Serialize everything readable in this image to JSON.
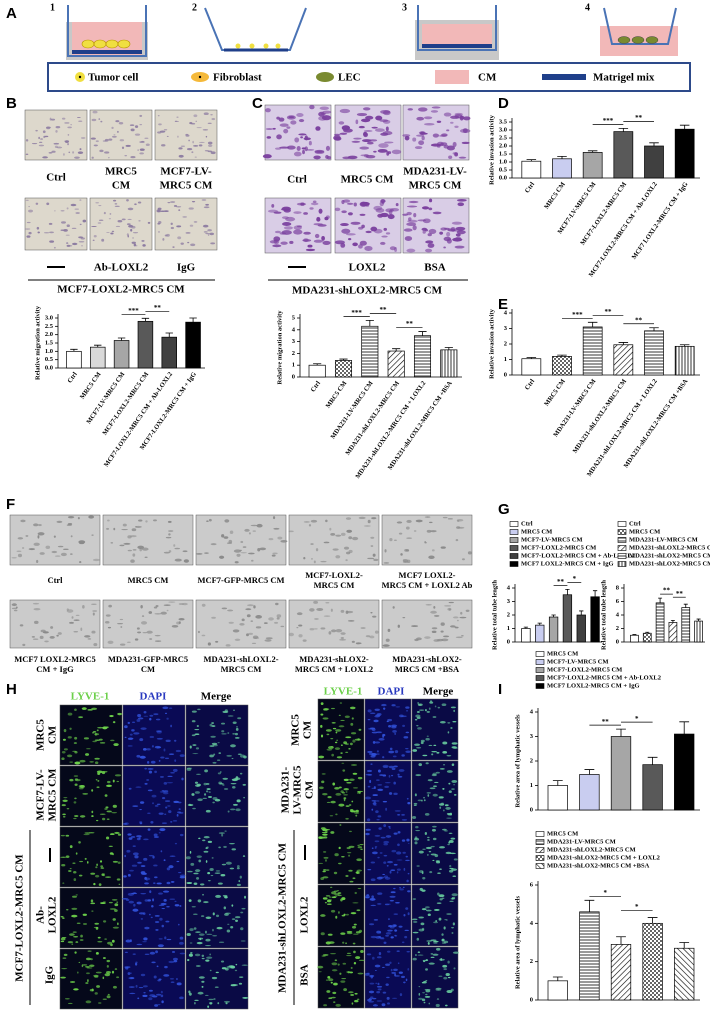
{
  "panel_labels": [
    "A",
    "B",
    "C",
    "D",
    "E",
    "F",
    "G",
    "H",
    "I"
  ],
  "schematic": {
    "steps": [
      "1",
      "2",
      "3",
      "4"
    ],
    "legend": [
      "Tumor cell",
      "Fibroblast",
      "LEC",
      "CM",
      "Matrigel mix"
    ]
  },
  "panel_b": {
    "captions": [
      [
        "Ctrl"
      ],
      [
        "MRC5",
        "CM"
      ],
      [
        "MCF7-LV-",
        "MRC5 CM"
      ]
    ],
    "treatments": [
      "Ab-LOXL2",
      "IgG"
    ],
    "group": "MCF7-LOXL2-MRC5 CM"
  },
  "panel_c": {
    "captions": [
      [
        "Ctrl"
      ],
      [
        "MRC5 CM"
      ],
      [
        "MDA231-LV-",
        "MRC5 CM"
      ]
    ],
    "treatments": [
      "LOXL2",
      "BSA"
    ],
    "group": "MDA231-shLOXL2-MRC5 CM"
  },
  "panel_f": {
    "captions": [
      [
        "Ctrl"
      ],
      [
        "MRC5 CM"
      ],
      [
        "MCF7-GFP-MRC5 CM"
      ],
      [
        "MCF7-LOXL2-",
        "MRC5 CM"
      ],
      [
        "MCF7 LOXL2-",
        "MRC5 CM + LOXL2 Ab"
      ],
      [
        "MCF7 LOXL2-MRC5",
        "CM + IgG"
      ],
      [
        "MDA231-GFP-MRC5",
        "CM"
      ],
      [
        "MDA231-shLOXL2-",
        "MRC5 CM"
      ],
      [
        "MDA231-shLOX2-",
        "MRC5 CM + LOXL2"
      ],
      [
        "MDA231-shLOX2-",
        "MRC5 CM +BSA"
      ]
    ]
  },
  "panel_h": {
    "left": {
      "headers": [
        "LYVE-1",
        "DAPI",
        "Merge"
      ],
      "rows": [
        [
          "MRC5",
          "CM"
        ],
        [
          "MCF7-LV-",
          "MRC5 CM"
        ],
        [
          "Ab-",
          "LOXL2"
        ],
        [
          "IgG"
        ]
      ],
      "group": "MCF7-LOXL2-MRC5 CM"
    },
    "right": {
      "headers": [
        "LYVE-1",
        "DAPI",
        "Merge"
      ],
      "rows": [
        [
          "MRC5",
          "CM"
        ],
        [
          "MDA231-",
          "LV-MRC5",
          "CM"
        ],
        [
          "LOXL2"
        ],
        [
          "BSA"
        ]
      ],
      "group": "MDA231-shLOXL2-MRC5 CM"
    }
  },
  "chart_data": [
    {
      "type": "bar",
      "ylabel": "Relative migration activity",
      "category_labels": "axis",
      "categories": [
        "Ctrl",
        "MRC5 CM",
        "MCF7-LV-MRC5 CM",
        "MCF7-LOXL2-MRC5 CM",
        "MCF7-LOXL2-MRC5 CM + Ab-LOXL2",
        "MCF7-LOXL2-MRC5 CM + IgG"
      ],
      "values": [
        1.0,
        1.25,
        1.65,
        2.8,
        1.85,
        2.75
      ],
      "errors": [
        0.12,
        0.12,
        0.15,
        0.18,
        0.25,
        0.25
      ],
      "colors": [
        "#ffffff",
        "#d9d9d9",
        "#a6a6a6",
        "#595959",
        "#404040",
        "#000000"
      ],
      "ylim": [
        0,
        3
      ],
      "yticks": [
        {
          "value": 0,
          "label": "0.0"
        },
        {
          "value": 0.5,
          "label": "0.5"
        },
        {
          "value": 1,
          "label": "1.0"
        },
        {
          "value": 1.5,
          "label": "1.5"
        },
        {
          "value": 2,
          "label": "2.0"
        },
        {
          "value": 2.5,
          "label": "2.5"
        },
        {
          "value": 3,
          "label": "3.0"
        }
      ],
      "annotations": [
        {
          "text": "***",
          "between": [
            "MCF7-LV-MRC5 CM",
            "MCF7-LOXL2-MRC5 CM"
          ]
        },
        {
          "text": "**",
          "between": [
            "MCF7-LOXL2-MRC5 CM",
            "MCF7-LOXL2-MRC5 CM + Ab-LOXL2"
          ]
        }
      ]
    },
    {
      "type": "bar",
      "ylabel": "Relative migration activity",
      "category_labels": "axis",
      "categories": [
        "Ctrl",
        "MRC5 CM",
        "MDA231-LV-MRC5 CM",
        "MDA231-shLOXL2-MRC5 CM",
        "MDA231-shLOXL2-MRC5 CM + LOXL2",
        "MDA231-shLOXL2-MRC5 CM +BSA"
      ],
      "values": [
        1.0,
        1.4,
        4.3,
        2.2,
        3.5,
        2.3
      ],
      "errors": [
        0.12,
        0.12,
        0.5,
        0.2,
        0.35,
        0.2
      ],
      "colors": [
        "#ffffff",
        "#ffffff",
        "#ffffff",
        "#ffffff",
        "#ffffff",
        "#ffffff"
      ],
      "patterns": [
        "solid",
        "check",
        "hline",
        "diag",
        "hline",
        "vline"
      ],
      "ylim": [
        0,
        5
      ],
      "yticks": [
        0,
        1,
        2,
        3,
        4,
        5
      ],
      "annotations": [
        {
          "text": "***",
          "between": [
            "MRC5 CM",
            "MDA231-LV-MRC5 CM"
          ]
        },
        {
          "text": "**",
          "between": [
            "MDA231-LV-MRC5 CM",
            "MDA231-shLOXL2-MRC5 CM"
          ]
        },
        {
          "text": "**",
          "between": [
            "MDA231-shLOXL2-MRC5 CM",
            "MDA231-shLOXL2-MRC5 CM + LOXL2"
          ]
        }
      ]
    },
    {
      "type": "bar",
      "ylabel": "Relative invasion activity",
      "category_labels": "axis",
      "categories": [
        "Ctrl",
        "MRC5 CM",
        "MCF7-LV-MRC5 CM",
        "MCF7-LOXL2-MRC5 CM",
        "MCF7-LOXL2-MRC5 CM + Ab-LOXL2",
        "MCF7 LOXL2-MRC5 CM + IgG"
      ],
      "values": [
        1.05,
        1.2,
        1.6,
        2.9,
        2.0,
        3.05
      ],
      "errors": [
        0.1,
        0.15,
        0.1,
        0.2,
        0.2,
        0.25
      ],
      "colors": [
        "#ffffff",
        "#c9cdf0",
        "#a6a6a6",
        "#595959",
        "#404040",
        "#000000"
      ],
      "ylim": [
        0,
        3.5
      ],
      "yticks": [
        {
          "value": 0,
          "label": "0.0"
        },
        {
          "value": 0.5,
          "label": "0.5"
        },
        {
          "value": 1,
          "label": "1.0"
        },
        {
          "value": 1.5,
          "label": "1.5"
        },
        {
          "value": 2,
          "label": "2.0"
        },
        {
          "value": 2.5,
          "label": "2.5"
        },
        {
          "value": 3,
          "label": "3.0"
        },
        {
          "value": 3.5,
          "label": "3.5"
        }
      ],
      "annotations": [
        {
          "text": "***",
          "between": [
            "MCF7-LV-MRC5 CM",
            "MCF7-LOXL2-MRC5 CM"
          ]
        },
        {
          "text": "**",
          "between": [
            "MCF7-LOXL2-MRC5 CM",
            "MCF7-LOXL2-MRC5 CM + Ab-LOXL2"
          ]
        }
      ]
    },
    {
      "type": "bar",
      "ylabel": "Relative invasion activity",
      "category_labels": "axis",
      "categories": [
        "Ctrl",
        "MRC5 CM",
        "MDA231-LV-MRC5 CM",
        "MDA231-shLOXL2-MRC5 CM",
        "MDA231-shLOXL2-MRC5 CM + LOXL2",
        "MDA231-shLOXL2-MRC5 CM +BSA"
      ],
      "values": [
        1.05,
        1.2,
        3.1,
        1.95,
        2.85,
        1.85
      ],
      "errors": [
        0.08,
        0.08,
        0.3,
        0.15,
        0.2,
        0.1
      ],
      "colors": [
        "#ffffff",
        "#ffffff",
        "#ffffff",
        "#ffffff",
        "#ffffff",
        "#ffffff"
      ],
      "patterns": [
        "solid",
        "check",
        "hline",
        "diag",
        "hline",
        "vline"
      ],
      "ylim": [
        0,
        4
      ],
      "yticks": [
        0,
        1,
        2,
        3,
        4
      ],
      "annotations": [
        {
          "text": "***",
          "between": [
            "MRC5 CM",
            "MDA231-LV-MRC5 CM"
          ]
        },
        {
          "text": "**",
          "between": [
            "MDA231-LV-MRC5 CM",
            "MDA231-shLOXL2-MRC5 CM"
          ]
        },
        {
          "text": "**",
          "between": [
            "MDA231-shLOXL2-MRC5 CM",
            "MDA231-shLOXL2-MRC5 CM + LOXL2"
          ]
        }
      ]
    },
    {
      "type": "bar",
      "ylabel": "Relative total tube length",
      "category_labels": "legend",
      "categories": [
        "Ctrl",
        "MRC5 CM",
        "MCF7-LV-MRC5 CM",
        "MCF7-LOXL2-MRC5 CM",
        "MCF7-LOXL2-MRC5 CM + Ab-LOXL2",
        "MCF7 LOXL2-MRC5 CM + IgG"
      ],
      "values": [
        1.0,
        1.25,
        1.85,
        3.5,
        2.0,
        3.35
      ],
      "errors": [
        0.1,
        0.15,
        0.15,
        0.4,
        0.3,
        0.45
      ],
      "colors": [
        "#ffffff",
        "#c9cdf0",
        "#a6a6a6",
        "#595959",
        "#404040",
        "#000000"
      ],
      "ylim": [
        0,
        4
      ],
      "yticks": [
        0,
        1,
        2,
        3,
        4
      ],
      "annotations": [
        {
          "text": "**",
          "between": [
            "MCF7-LV-MRC5 CM",
            "MCF7-LOXL2-MRC5 CM"
          ]
        },
        {
          "text": "*",
          "between": [
            "MCF7-LOXL2-MRC5 CM",
            "MCF7-LOXL2-MRC5 CM + Ab-LOXL2"
          ]
        }
      ]
    },
    {
      "type": "bar",
      "ylabel": "Relative total tube length",
      "category_labels": "legend",
      "categories": [
        "Ctrl",
        "MRC5 CM",
        "MDA231-LV-MRC5 CM",
        "MDA231-shLOXL2-MRC5 CM",
        "MDA231-shLOX2-MRC5 CM + LOXL2",
        "MDA231-shLOX2-MRC5 CM +BSA"
      ],
      "values": [
        1.0,
        1.3,
        5.8,
        2.9,
        5.1,
        3.1
      ],
      "errors": [
        0.1,
        0.15,
        0.7,
        0.3,
        0.5,
        0.3
      ],
      "colors": [
        "#ffffff",
        "#ffffff",
        "#ffffff",
        "#ffffff",
        "#ffffff",
        "#ffffff"
      ],
      "patterns": [
        "solid",
        "check",
        "hline",
        "diag",
        "hline",
        "vline"
      ],
      "ylim": [
        0,
        8
      ],
      "yticks": [
        0,
        2,
        4,
        6,
        8
      ],
      "annotations": [
        {
          "text": "**",
          "between": [
            "MDA231-LV-MRC5 CM",
            "MDA231-shLOXL2-MRC5 CM"
          ]
        },
        {
          "text": "**",
          "between": [
            "MDA231-shLOXL2-MRC5 CM",
            "MDA231-shLOX2-MRC5 CM + LOXL2"
          ]
        }
      ]
    },
    {
      "type": "bar",
      "ylabel": "Relative area of lymphatic vessels",
      "category_labels": "legend",
      "categories": [
        "MRC5 CM",
        "MCF7-LV-MRC5 CM",
        "MCF7-LOXL2-MRC5 CM",
        "MCF7-LOXL2-MRC5 CM + Ab-LOXL2",
        "MCF7 LOXL2-MRC5 CM + IgG"
      ],
      "values": [
        1.0,
        1.45,
        3.0,
        1.85,
        3.1
      ],
      "errors": [
        0.2,
        0.2,
        0.3,
        0.3,
        0.5
      ],
      "colors": [
        "#ffffff",
        "#c9cdf0",
        "#a6a6a6",
        "#595959",
        "#000000"
      ],
      "ylim": [
        0,
        4
      ],
      "yticks": [
        0,
        1,
        2,
        3,
        4
      ],
      "annotations": [
        {
          "text": "**",
          "between": [
            "MCF7-LV-MRC5 CM",
            "MCF7-LOXL2-MRC5 CM"
          ]
        },
        {
          "text": "*",
          "between": [
            "MCF7-LOXL2-MRC5 CM",
            "MCF7-LOXL2-MRC5 CM + Ab-LOXL2"
          ]
        }
      ]
    },
    {
      "type": "bar",
      "ylabel": "Relative area of lymphatic vessels",
      "category_labels": "legend",
      "categories": [
        "MRC5 CM",
        "MDA231-LV-MRC5 CM",
        "MDA231-shLOXL2-MRC5 CM",
        "MDA231-shLOX2-MRC5 CM + LOXL2",
        "MDA231-shLOX2-MRC5 CM +BSA"
      ],
      "values": [
        1.0,
        4.6,
        2.9,
        4.0,
        2.7
      ],
      "errors": [
        0.2,
        0.6,
        0.4,
        0.3,
        0.3
      ],
      "colors": [
        "#ffffff",
        "#ffffff",
        "#ffffff",
        "#ffffff",
        "#ffffff"
      ],
      "patterns": [
        "solid",
        "hline",
        "diag",
        "check",
        "diag2"
      ],
      "ylim": [
        0,
        6
      ],
      "yticks": [
        0,
        2,
        4,
        6
      ],
      "annotations": [
        {
          "text": "*",
          "between": [
            "MDA231-LV-MRC5 CM",
            "MDA231-shLOXL2-MRC5 CM"
          ]
        },
        {
          "text": "*",
          "between": [
            "MDA231-shLOXL2-MRC5 CM",
            "MDA231-shLOX2-MRC5 CM + LOXL2"
          ]
        }
      ]
    }
  ]
}
